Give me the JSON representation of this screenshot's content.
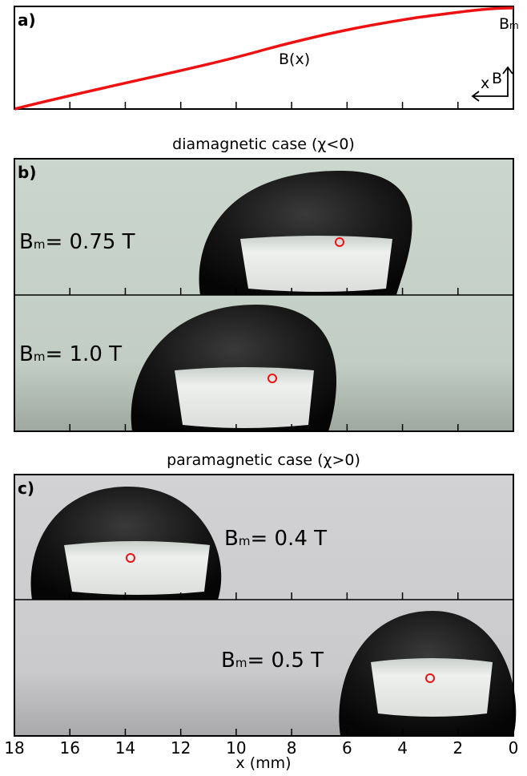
{
  "panel_a": {
    "label": "a)",
    "curve_label": "B(x)",
    "max_label": "B",
    "max_sub": "m",
    "axis_b": "B",
    "axis_x": "x"
  },
  "panel_b": {
    "label": "b)",
    "title": "diamagnetic case (χ<0)",
    "drops": [
      {
        "symbol": "B",
        "sub": "m",
        "text": "= 0.75 T"
      },
      {
        "symbol": "B",
        "sub": "m",
        "text": "= 1.0 T"
      }
    ]
  },
  "panel_c": {
    "label": "c)",
    "title": "paramagnetic case (χ>0)",
    "drops": [
      {
        "symbol": "B",
        "sub": "m",
        "text": "= 0.4 T"
      },
      {
        "symbol": "B",
        "sub": "m",
        "text": "= 0.5 T"
      }
    ]
  },
  "x_axis": {
    "label": "x (mm)",
    "xlim": [
      18,
      0
    ],
    "ticks": [
      18,
      16,
      14,
      12,
      10,
      8,
      6,
      4,
      2,
      0
    ]
  }
}
